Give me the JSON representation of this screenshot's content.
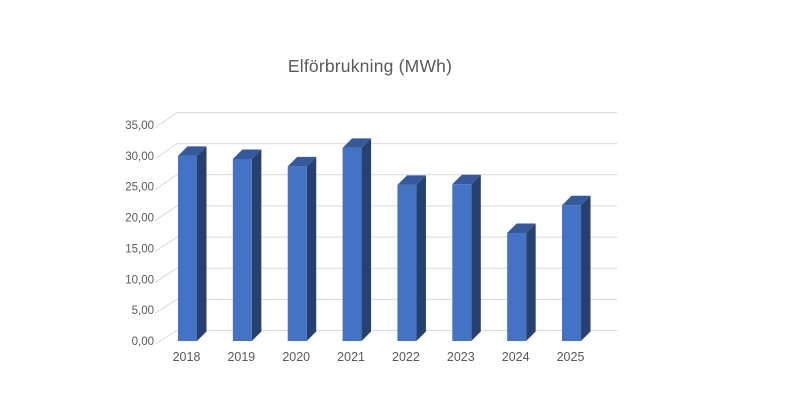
{
  "chart_data": {
    "type": "bar",
    "style": "3d-column",
    "title": "Elförbrukning (MWh)",
    "categories": [
      "2018",
      "2019",
      "2020",
      "2021",
      "2022",
      "2023",
      "2024",
      "2025"
    ],
    "values": [
      30.0,
      29.5,
      28.3,
      31.3,
      25.3,
      25.4,
      17.5,
      22.0
    ],
    "series_unit": "MWh",
    "ylim": [
      0,
      35
    ],
    "ytick_step": 5,
    "ytick_labels": [
      "35,00",
      "30,00",
      "25,00",
      "20,00",
      "15,00",
      "10,00",
      "5,00",
      "0,00"
    ],
    "grid": true,
    "legend": false,
    "colors": {
      "bar_front": "#4472C4",
      "bar_side": "#27406F",
      "bar_top": "#35599B",
      "gridline": "#D9D9D9",
      "axis_label": "#595959",
      "title": "#595959",
      "background": "#FFFFFF"
    }
  }
}
